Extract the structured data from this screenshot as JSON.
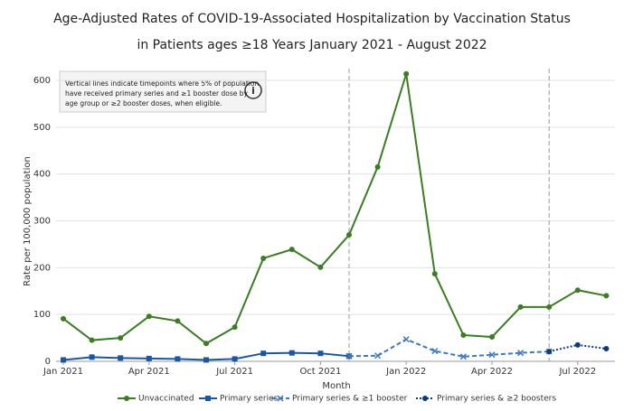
{
  "chart_data": {
    "type": "line",
    "title": "Age-Adjusted Rates of COVID-19-Associated Hospitalization by Vaccination Status",
    "subtitle": "in Patients ages ≥18 Years January 2021 - August 2022",
    "xlabel": "Month",
    "ylabel": "Rate per 100,000 population",
    "annotation": [
      "Vertical lines indicate timepoints where 5% of population",
      "have received primary series and ≥1 booster dose by",
      "age group or ≥2 booster doses, when eligible."
    ],
    "categories": [
      "Jan 2021",
      null,
      null,
      "Apr 2021",
      null,
      null,
      "Jul 2021",
      null,
      null,
      "Oct 2021",
      null,
      null,
      "Jan 2022",
      null,
      null,
      "Apr 2022",
      null,
      null,
      "Jul 2022",
      null
    ],
    "vertical_lines": [
      10,
      17
    ],
    "ylim": [
      0,
      600
    ],
    "yticks": [
      0,
      100,
      200,
      300,
      400,
      500,
      600
    ],
    "grid": true,
    "series": [
      {
        "name": "Unvaccinated",
        "color": "#3a7d22",
        "marker": "circle",
        "dash": "solid",
        "values": [
          91,
          45,
          50,
          96,
          86,
          38,
          73,
          220,
          239,
          201,
          270,
          415,
          614,
          187,
          56,
          52,
          116,
          116,
          152,
          140
        ]
      },
      {
        "name": "Primary series",
        "color": "#1a56a8",
        "marker": "square",
        "dash": "solid",
        "values": [
          3,
          9,
          7,
          6,
          5,
          3,
          5,
          17,
          18,
          17,
          11,
          null,
          null,
          null,
          null,
          null,
          null,
          null,
          null,
          null
        ]
      },
      {
        "name": "Primary series & ≥1 booster",
        "color": "#3b78c4",
        "marker": "x",
        "dash": "dashed",
        "values": [
          null,
          null,
          null,
          null,
          null,
          null,
          null,
          null,
          null,
          null,
          11,
          12,
          47,
          22,
          10,
          14,
          18,
          21,
          null,
          null
        ]
      },
      {
        "name": "Primary series & ≥2 boosters",
        "color": "#0d3a7a",
        "marker": "circle",
        "dash": "dotted",
        "values": [
          null,
          null,
          null,
          null,
          null,
          null,
          null,
          null,
          null,
          null,
          null,
          null,
          null,
          null,
          null,
          null,
          null,
          21,
          35,
          27
        ]
      }
    ]
  }
}
